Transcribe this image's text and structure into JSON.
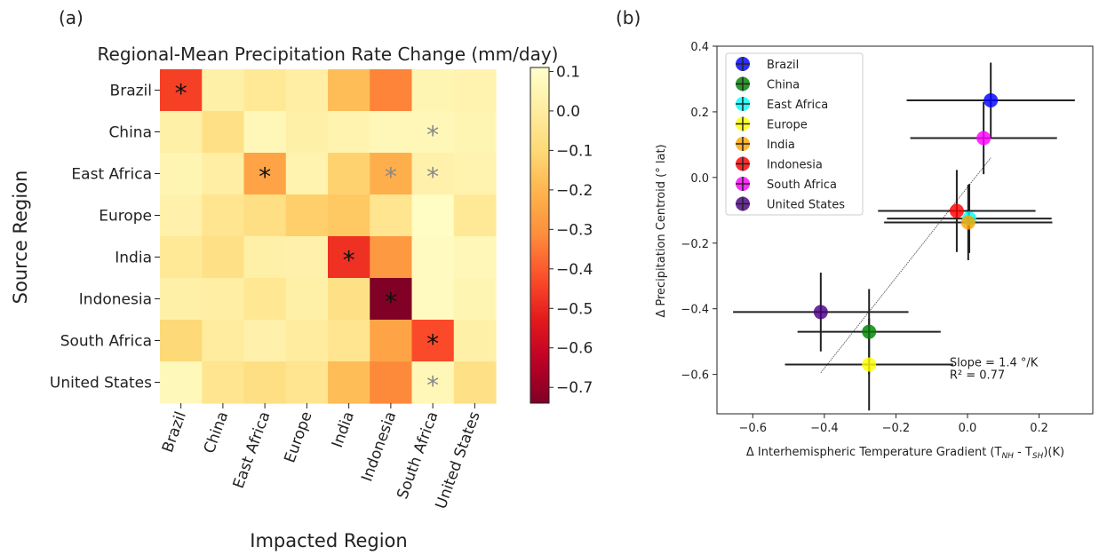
{
  "chart_data": [
    {
      "type": "heatmap",
      "panel_label": "(a)",
      "title": "Regional-Mean Precipitation Rate Change (mm/day)",
      "xlabel": "Impacted Region",
      "ylabel": "Source Region",
      "x_categories": [
        "Brazil",
        "China",
        "East Africa",
        "Europe",
        "India",
        "Indonesia",
        "South Africa",
        "United States"
      ],
      "y_categories": [
        "Brazil",
        "China",
        "East Africa",
        "Europe",
        "India",
        "Indonesia",
        "South Africa",
        "United States"
      ],
      "values": [
        [
          -0.45,
          0.02,
          -0.02,
          0.01,
          -0.18,
          -0.33,
          0.05,
          0.04
        ],
        [
          0.02,
          -0.06,
          0.06,
          0.02,
          0.04,
          0.06,
          0.06,
          0.05
        ],
        [
          0.05,
          0.01,
          -0.25,
          0.04,
          -0.12,
          -0.22,
          0.03,
          0.04
        ],
        [
          0.03,
          -0.04,
          -0.07,
          -0.13,
          -0.15,
          -0.04,
          0.09,
          -0.02
        ],
        [
          -0.02,
          -0.06,
          0.02,
          0.03,
          -0.48,
          -0.28,
          0.08,
          0.06
        ],
        [
          0.02,
          0.01,
          -0.03,
          0.02,
          -0.06,
          -0.74,
          0.08,
          0.05
        ],
        [
          -0.1,
          0.0,
          0.03,
          0.0,
          -0.04,
          -0.25,
          -0.43,
          0.02
        ],
        [
          0.07,
          -0.04,
          -0.07,
          -0.04,
          -0.18,
          -0.32,
          0.06,
          -0.06
        ]
      ],
      "significance_markers": [
        {
          "row": 0,
          "col": 0,
          "symbol": "*",
          "color": "#111111"
        },
        {
          "row": 1,
          "col": 6,
          "symbol": "*",
          "color": "#888888"
        },
        {
          "row": 2,
          "col": 2,
          "symbol": "*",
          "color": "#111111"
        },
        {
          "row": 2,
          "col": 5,
          "symbol": "*",
          "color": "#888888"
        },
        {
          "row": 2,
          "col": 6,
          "symbol": "*",
          "color": "#888888"
        },
        {
          "row": 4,
          "col": 4,
          "symbol": "*",
          "color": "#111111"
        },
        {
          "row": 5,
          "col": 5,
          "symbol": "*",
          "color": "#111111"
        },
        {
          "row": 6,
          "col": 6,
          "symbol": "*",
          "color": "#111111"
        },
        {
          "row": 7,
          "col": 6,
          "symbol": "*",
          "color": "#888888"
        }
      ],
      "colorbar": {
        "range": [
          -0.74,
          0.11
        ],
        "ticks": [
          0.1,
          0.0,
          -0.1,
          -0.2,
          -0.3,
          -0.4,
          -0.5,
          -0.6,
          -0.7
        ],
        "tick_labels": [
          "0.1",
          "0.0",
          "−0.1",
          "−0.2",
          "−0.3",
          "−0.4",
          "−0.5",
          "−0.6",
          "−0.7"
        ],
        "colormap": "YlOrRd_r"
      }
    },
    {
      "type": "scatter",
      "panel_label": "(b)",
      "xlabel_prefix": "Δ Interhemispheric Temperature Gradient (T",
      "xlabel_sub1": "NH",
      "xlabel_mid": " - T",
      "xlabel_sub2": "SH",
      "xlabel_suffix": ")(K)",
      "ylabel": "Δ Precipitation Centroid (° lat)",
      "xlim": [
        -0.7,
        0.35
      ],
      "ylim": [
        -0.72,
        0.4
      ],
      "xticks": [
        -0.6,
        -0.4,
        -0.2,
        0.0,
        0.2
      ],
      "xtick_labels": [
        "−0.6",
        "−0.4",
        "−0.2",
        "0.0",
        "0.2"
      ],
      "yticks": [
        0.4,
        0.2,
        0.0,
        -0.2,
        -0.4,
        -0.6
      ],
      "ytick_labels": [
        "0.4",
        "0.2",
        "0.0",
        "−0.2",
        "−0.4",
        "−0.6"
      ],
      "points": [
        {
          "name": "Brazil",
          "color": "#0000ff",
          "x": 0.065,
          "y": 0.235,
          "xerr": 0.235,
          "yerr": 0.115
        },
        {
          "name": "China",
          "color": "#008000",
          "x": -0.275,
          "y": -0.47,
          "xerr": 0.2,
          "yerr": 0.13
        },
        {
          "name": "East Africa",
          "color": "#00ffff",
          "x": 0.005,
          "y": -0.125,
          "xerr": 0.23,
          "yerr": 0.105
        },
        {
          "name": "Europe",
          "color": "#ffff00",
          "x": -0.275,
          "y": -0.57,
          "xerr": 0.235,
          "yerr": 0.14
        },
        {
          "name": "India",
          "color": "#ffa500",
          "x": 0.002,
          "y": -0.137,
          "xerr": 0.235,
          "yerr": 0.115
        },
        {
          "name": "Indonesia",
          "color": "#ff0000",
          "x": -0.03,
          "y": -0.102,
          "xerr": 0.22,
          "yerr": 0.125
        },
        {
          "name": "South Africa",
          "color": "#ff00ff",
          "x": 0.045,
          "y": 0.12,
          "xerr": 0.205,
          "yerr": 0.11
        },
        {
          "name": "United States",
          "color": "#4b0082",
          "x": -0.41,
          "y": -0.41,
          "xerr": 0.245,
          "yerr": 0.12
        }
      ],
      "fit_line": {
        "x": [
          -0.41,
          0.065
        ],
        "y": [
          -0.595,
          0.06
        ]
      },
      "annotation_lines": [
        "Slope = 1.4 °/K",
        "R² = 0.77"
      ],
      "annotation_anchor": {
        "x": -0.05,
        "y": -0.565
      },
      "legend": {
        "placement": "upper left"
      }
    }
  ]
}
